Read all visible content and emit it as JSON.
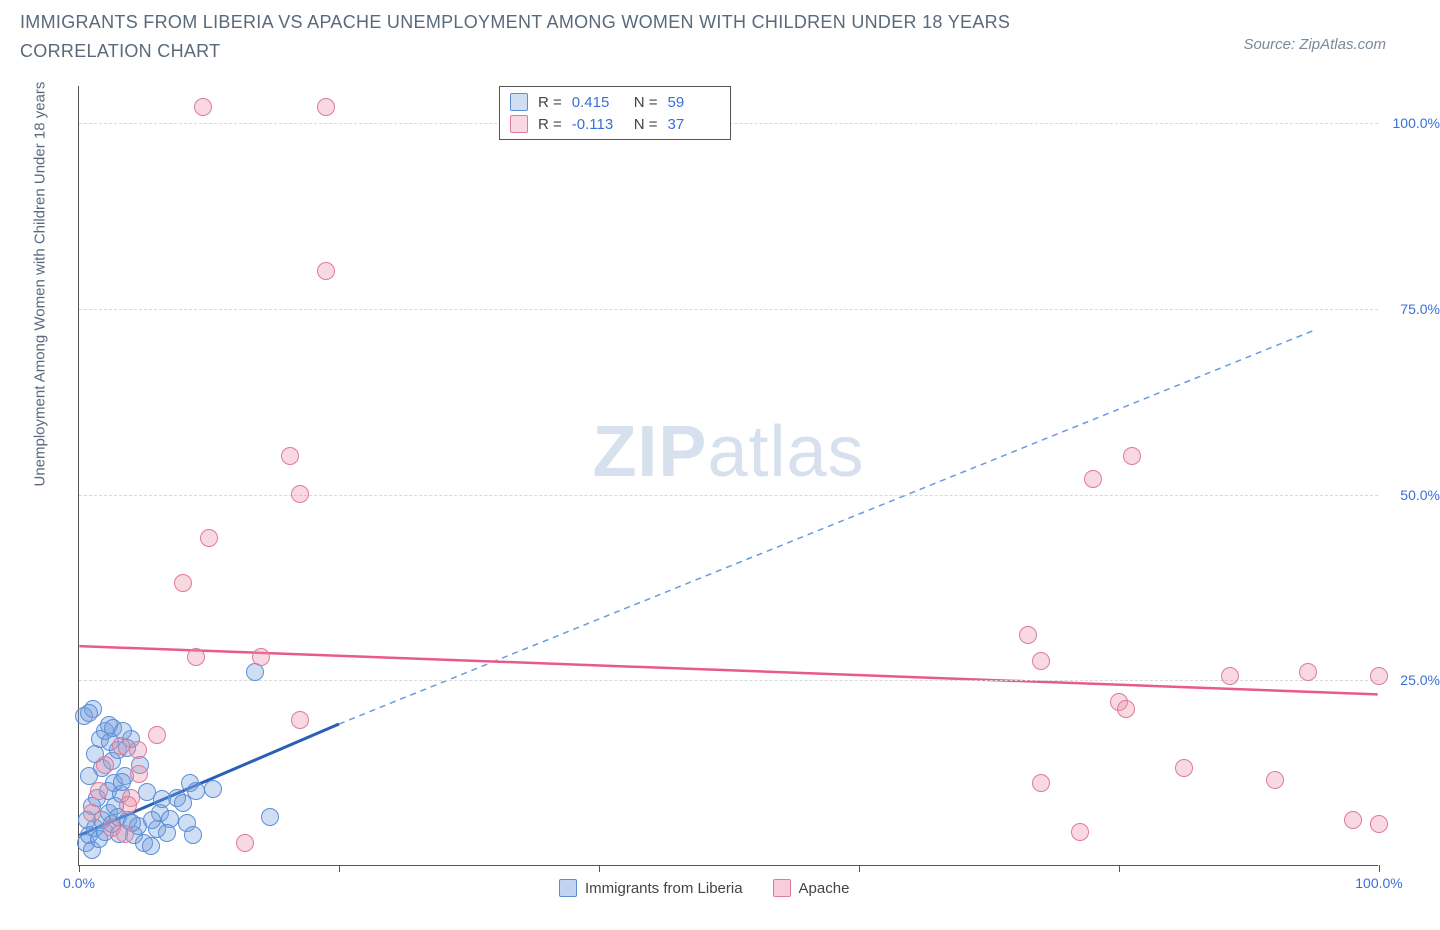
{
  "header": {
    "title": "IMMIGRANTS FROM LIBERIA VS APACHE UNEMPLOYMENT AMONG WOMEN WITH CHILDREN UNDER 18 YEARS CORRELATION CHART",
    "source": "Source: ZipAtlas.com"
  },
  "watermark": {
    "bold": "ZIP",
    "rest": "atlas"
  },
  "chart": {
    "type": "scatter",
    "y_axis_title": "Unemployment Among Women with Children Under 18 years",
    "xlim": [
      0,
      100
    ],
    "ylim": [
      0,
      105
    ],
    "x_ticks": [
      0,
      20,
      40,
      60,
      80,
      100
    ],
    "x_tick_labels_shown": {
      "0": "0.0%",
      "100": "100.0%"
    },
    "y_ticks": [
      25,
      50,
      75,
      100
    ],
    "y_tick_labels": [
      "25.0%",
      "50.0%",
      "75.0%",
      "100.0%"
    ],
    "background_color": "#ffffff",
    "grid_color": "#d5d9dd",
    "axis_color": "#555555",
    "marker_radius": 9,
    "marker_stroke_width": 1.2,
    "series": [
      {
        "name": "Immigrants from Liberia",
        "fill": "rgba(120,160,220,0.35)",
        "stroke": "#5a8fd8",
        "trend": {
          "solid_color": "#2a5fb8",
          "solid_width": 3,
          "dash_color": "#6a9be0",
          "dash_width": 1.5,
          "x1": 0,
          "y1": 4,
          "x_solid_end": 20,
          "y_solid_end": 19,
          "x2": 95,
          "y2": 72
        },
        "stats": {
          "R_label": "R =",
          "R": "0.415",
          "N_label": "N =",
          "N": "59"
        },
        "points": [
          [
            0.5,
            3
          ],
          [
            0.8,
            4
          ],
          [
            1,
            2
          ],
          [
            1.2,
            5
          ],
          [
            1.5,
            3.5
          ],
          [
            1.8,
            6
          ],
          [
            2,
            4.5
          ],
          [
            2.3,
            7
          ],
          [
            2.5,
            5.5
          ],
          [
            2.8,
            8
          ],
          [
            3,
            6.5
          ],
          [
            1,
            8
          ],
          [
            0.6,
            6
          ],
          [
            1.4,
            9
          ],
          [
            2.2,
            10
          ],
          [
            2.7,
            11
          ],
          [
            3.2,
            9.5
          ],
          [
            3.5,
            12
          ],
          [
            1.8,
            13
          ],
          [
            2.5,
            14
          ],
          [
            3,
            15.5
          ],
          [
            1.2,
            15
          ],
          [
            0.8,
            12
          ],
          [
            1.6,
            17
          ],
          [
            2,
            18
          ],
          [
            2.4,
            16.5
          ],
          [
            3.8,
            6
          ],
          [
            4.2,
            4
          ],
          [
            4.5,
            5.2
          ],
          [
            5,
            3
          ],
          [
            5.5,
            2.5
          ],
          [
            6,
            4.8
          ],
          [
            6.2,
            7
          ],
          [
            7,
            6.2
          ],
          [
            7.5,
            9
          ],
          [
            8,
            8.3
          ],
          [
            8.5,
            11
          ],
          [
            9,
            10
          ],
          [
            0.4,
            20
          ],
          [
            1.1,
            21
          ],
          [
            2.3,
            18.8
          ],
          [
            3.1,
            4.2
          ],
          [
            0.8,
            20.5
          ],
          [
            4,
            17
          ],
          [
            2.6,
            18.5
          ],
          [
            3.7,
            15.7
          ],
          [
            4.1,
            5.6
          ],
          [
            5.2,
            9.8
          ],
          [
            6.8,
            4.3
          ],
          [
            3.3,
            11.2
          ],
          [
            4.7,
            13.5
          ],
          [
            5.6,
            6.1
          ],
          [
            6.4,
            8.9
          ],
          [
            8.3,
            5.7
          ],
          [
            10.3,
            10.2
          ],
          [
            13.5,
            26
          ],
          [
            14.7,
            6.5
          ],
          [
            3.4,
            18
          ],
          [
            8.8,
            4.1
          ]
        ]
      },
      {
        "name": "Apache",
        "fill": "rgba(235,145,170,0.35)",
        "stroke": "#e07a9a",
        "trend": {
          "solid_color": "#e85a8a",
          "solid_width": 2.5,
          "x1": 0,
          "y1": 29.5,
          "x2": 100,
          "y2": 23
        },
        "stats": {
          "R_label": "R =",
          "R": "-0.113",
          "N_label": "N =",
          "N": "37"
        },
        "points": [
          [
            1,
            7
          ],
          [
            1.5,
            10
          ],
          [
            2,
            13.5
          ],
          [
            2.5,
            5
          ],
          [
            3.2,
            16
          ],
          [
            3.5,
            4.2
          ],
          [
            4,
            9
          ],
          [
            4.5,
            15.5
          ],
          [
            6,
            17.5
          ],
          [
            9.5,
            102
          ],
          [
            19,
            102
          ],
          [
            9,
            28
          ],
          [
            17,
            19.5
          ],
          [
            19,
            80
          ],
          [
            8,
            38
          ],
          [
            17,
            50
          ],
          [
            16.2,
            55
          ],
          [
            10,
            44
          ],
          [
            14,
            28
          ],
          [
            12.8,
            3
          ],
          [
            4.6,
            12.2
          ],
          [
            73,
            31
          ],
          [
            74,
            27.5
          ],
          [
            78,
            52
          ],
          [
            80,
            22
          ],
          [
            80.5,
            21
          ],
          [
            74,
            11
          ],
          [
            77,
            4.5
          ],
          [
            81,
            55
          ],
          [
            85,
            13
          ],
          [
            88.5,
            25.5
          ],
          [
            92,
            11.5
          ],
          [
            94.5,
            26
          ],
          [
            98,
            6
          ],
          [
            100,
            5.5
          ],
          [
            100,
            25.5
          ],
          [
            3.8,
            8.1
          ]
        ]
      }
    ],
    "bottom_legend": [
      {
        "label": "Immigrants from Liberia",
        "fill": "rgba(120,160,220,0.45)",
        "stroke": "#5a8fd8"
      },
      {
        "label": "Apache",
        "fill": "rgba(235,145,170,0.45)",
        "stroke": "#e07a9a"
      }
    ]
  }
}
